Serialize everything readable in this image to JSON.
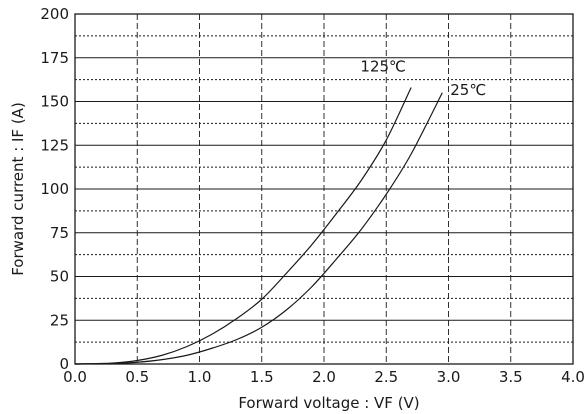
{
  "chart_data": {
    "type": "line",
    "title": "",
    "xlabel": "Forward voltage : VF (V)",
    "ylabel": "Forward current : IF (A)",
    "xlim": [
      0.0,
      4.0
    ],
    "ylim": [
      0,
      200
    ],
    "x_ticks": [
      "0.0",
      "0.5",
      "1.0",
      "1.5",
      "2.0",
      "2.5",
      "3.0",
      "3.5",
      "4.0"
    ],
    "y_ticks": [
      "0",
      "25",
      "50",
      "75",
      "100",
      "125",
      "150",
      "175",
      "200"
    ],
    "grid": true,
    "series": [
      {
        "name": "125℃",
        "x": [
          0.0,
          0.3,
          0.5,
          0.7,
          0.9,
          1.1,
          1.3,
          1.5,
          1.7,
          1.9,
          2.1,
          2.3,
          2.5,
          2.7
        ],
        "y": [
          0,
          0.5,
          2,
          5,
          10,
          17,
          26,
          37,
          52,
          68,
          86,
          105,
          128,
          158
        ]
      },
      {
        "name": "25℃",
        "x": [
          0.0,
          0.3,
          0.5,
          0.7,
          0.9,
          1.1,
          1.3,
          1.5,
          1.7,
          1.9,
          2.1,
          2.3,
          2.5,
          2.7,
          2.95
        ],
        "y": [
          0,
          0.3,
          1,
          2.5,
          5,
          9,
          14,
          21,
          31,
          44,
          60,
          77,
          97,
          120,
          155
        ]
      }
    ]
  }
}
